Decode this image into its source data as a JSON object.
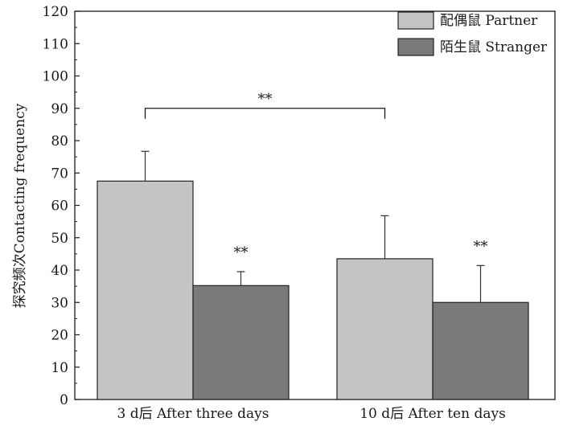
{
  "chart_data": {
    "type": "bar",
    "ylabel": "探究频次Contacting frequency",
    "xlabel": "",
    "ylim": [
      0,
      120
    ],
    "y_ticks": [
      0,
      10,
      20,
      30,
      40,
      50,
      60,
      70,
      80,
      90,
      100,
      110,
      120
    ],
    "categories": [
      "3 d后 After three days",
      "10 d后 After ten days"
    ],
    "series": [
      {
        "name": "配偶鼠 Partner",
        "color": "#c4c4c4",
        "values": [
          67.5,
          43.5
        ],
        "errors": [
          9.2,
          13.3
        ],
        "labels": [
          "",
          ""
        ]
      },
      {
        "name": "陌生鼠 Stranger",
        "color": "#7a7a7a",
        "values": [
          35.2,
          30.0
        ],
        "errors": [
          4.3,
          11.4
        ],
        "labels": [
          "**",
          "**"
        ]
      }
    ],
    "bracket": {
      "label": "**",
      "from_category": 0,
      "to_category": 1,
      "at_value": 90
    },
    "legend_position": "top-right",
    "grid": false
  }
}
